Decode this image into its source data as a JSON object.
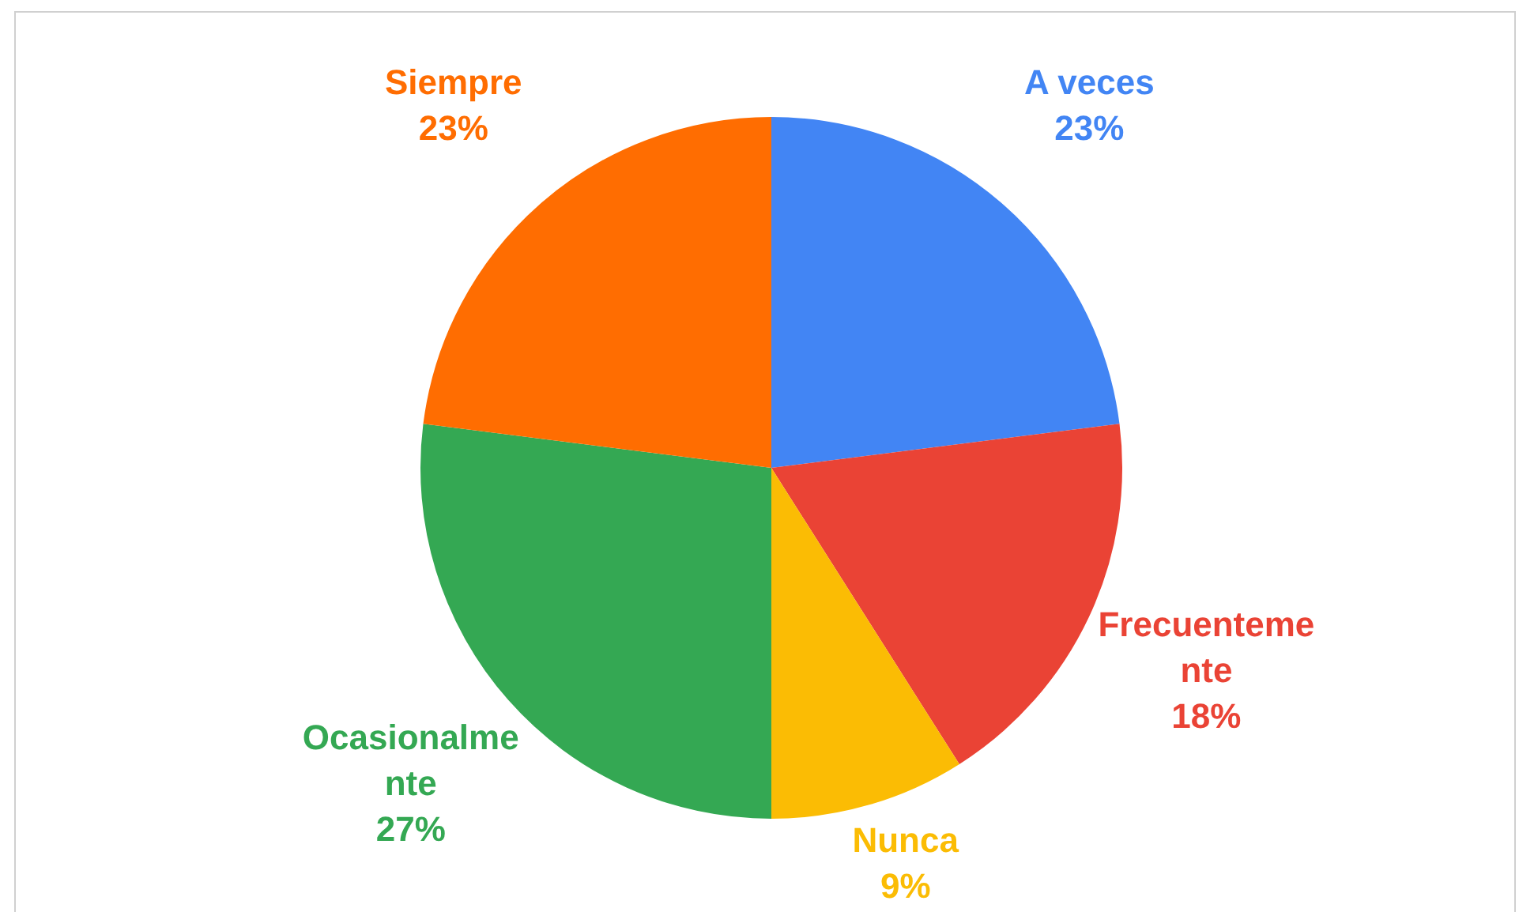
{
  "chart_data": {
    "type": "pie",
    "categories": [
      "A veces",
      "Frecuentemente",
      "Nunca",
      "Ocasionalmente",
      "Siempre"
    ],
    "values": [
      23,
      18,
      9,
      27,
      23
    ],
    "colors": [
      "#4285f4",
      "#ea4335",
      "#fbbc04",
      "#34a853",
      "#ff6d01"
    ],
    "value_labels": [
      "23%",
      "18%",
      "9%",
      "27%",
      "23%"
    ],
    "legend": false
  }
}
